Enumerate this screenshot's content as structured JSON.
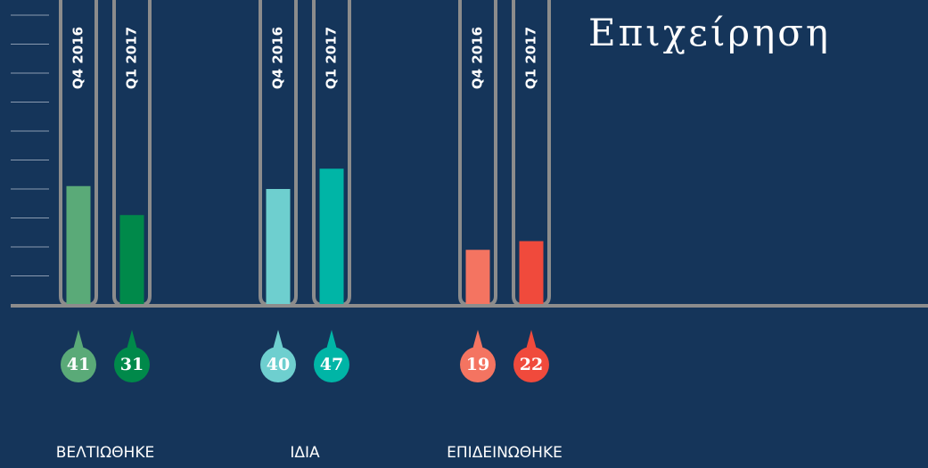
{
  "chart_data": {
    "type": "bar",
    "title": "Επιχείρηση",
    "categories": [
      "ΒΕΛΤΙΩΘΗΚΕ",
      "ΙΔΙΑ",
      "ΕΠΙΔΕΙΝΩΘΗΚΕ"
    ],
    "series": [
      {
        "name": "Q4 2016",
        "color": [
          "#5aaa78",
          "#6ecfcf",
          "#f47461"
        ],
        "values": [
          41,
          40,
          19
        ]
      },
      {
        "name": "Q1 2017",
        "color": [
          "#00894a",
          "#00b5a6",
          "#f04a3c"
        ],
        "values": [
          31,
          47,
          22
        ]
      }
    ],
    "ylim": [
      0,
      100
    ],
    "yticks": [
      10,
      20,
      30,
      40,
      50,
      60,
      70,
      80,
      90,
      100
    ]
  }
}
